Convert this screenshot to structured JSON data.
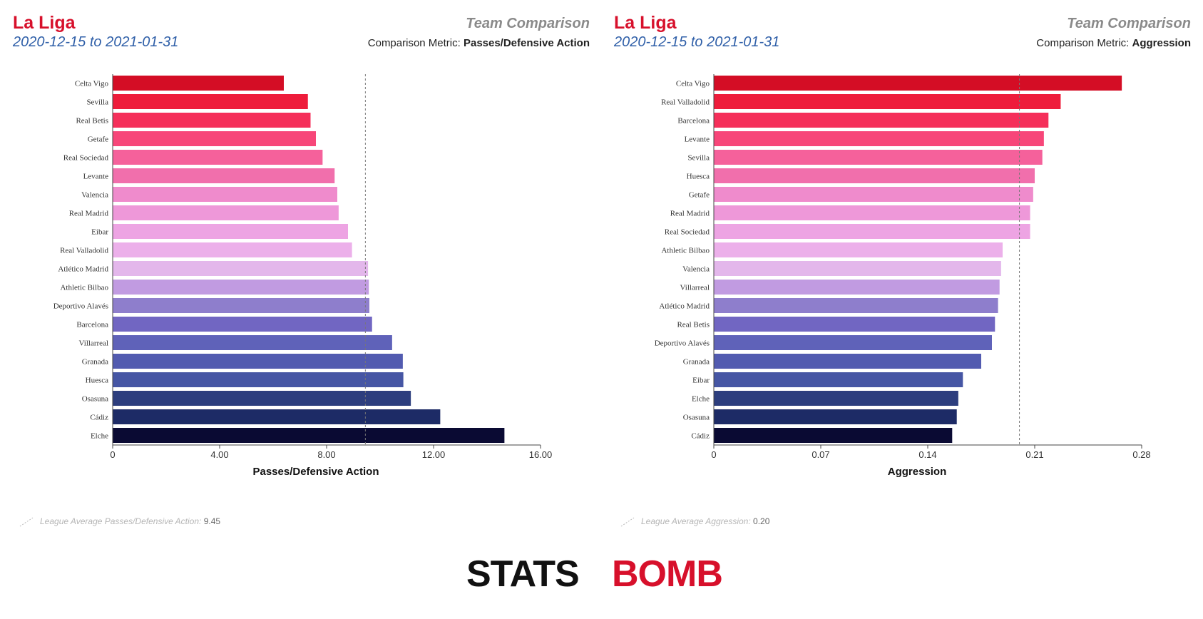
{
  "panels": [
    {
      "title": "La Liga",
      "date_range": "2020-12-15 to 2021-01-31",
      "comparison_heading": "Team Comparison",
      "metric_prefix": "Comparison Metric: ",
      "metric_name": "Passes/Defensive Action",
      "legend_label": "League Average Passes/Defensive Action:",
      "legend_value": "9.45"
    },
    {
      "title": "La Liga",
      "date_range": "2020-12-15 to 2021-01-31",
      "comparison_heading": "Team Comparison",
      "metric_prefix": "Comparison Metric: ",
      "metric_name": "Aggression",
      "legend_label": "League Average Aggression:",
      "legend_value": "0.20"
    }
  ],
  "logo": {
    "part1": "STATS",
    "part2": "BOMB",
    "color1": "#111111",
    "color2": "#d7102b"
  },
  "chart_data": [
    {
      "type": "bar",
      "orientation": "horizontal",
      "categories": [
        "Celta Vigo",
        "Sevilla",
        "Real Betis",
        "Getafe",
        "Real Sociedad",
        "Levante",
        "Valencia",
        "Real Madrid",
        "Eibar",
        "Real Valladolid",
        "Atlético Madrid",
        "Athletic Bilbao",
        "Deportivo Alavés",
        "Barcelona",
        "Villarreal",
        "Granada",
        "Huesca",
        "Osasuna",
        "Cádiz",
        "Elche"
      ],
      "values": [
        6.4,
        7.3,
        7.4,
        7.6,
        7.85,
        8.3,
        8.4,
        8.45,
        8.8,
        8.95,
        9.55,
        9.58,
        9.6,
        9.7,
        10.45,
        10.85,
        10.87,
        11.15,
        12.25,
        14.65
      ],
      "xlabel": "Passes/Defensive Action",
      "xlim": [
        0,
        16
      ],
      "xticks": [
        0,
        4,
        8,
        12,
        16
      ],
      "xtick_labels": [
        "0",
        "4.00",
        "8.00",
        "12.00",
        "16.00"
      ],
      "reference_line": 9.45,
      "colors": [
        "#d40d25",
        "#ee1c3b",
        "#f52f5a",
        "#f74679",
        "#f5619b",
        "#f16fac",
        "#ef8bcc",
        "#ee98d9",
        "#eda4e3",
        "#ecb0ea",
        "#e3b7eb",
        "#c19be1",
        "#8e7ecc",
        "#7166c2",
        "#5f62b9",
        "#525bb0",
        "#4656a4",
        "#2d3e7e",
        "#1d2b66",
        "#0a0a33"
      ],
      "grid": false
    },
    {
      "type": "bar",
      "orientation": "horizontal",
      "categories": [
        "Celta Vigo",
        "Real Valladolid",
        "Barcelona",
        "Levante",
        "Sevilla",
        "Huesca",
        "Getafe",
        "Real Madrid",
        "Real Sociedad",
        "Athletic Bilbao",
        "Valencia",
        "Villarreal",
        "Atlético Madrid",
        "Real Betis",
        "Deportivo Alavés",
        "Granada",
        "Eibar",
        "Elche",
        "Osasuna",
        "Cádiz"
      ],
      "values": [
        0.267,
        0.227,
        0.219,
        0.216,
        0.215,
        0.21,
        0.209,
        0.207,
        0.207,
        0.189,
        0.188,
        0.187,
        0.186,
        0.184,
        0.182,
        0.175,
        0.163,
        0.16,
        0.159,
        0.156
      ],
      "xlabel": "Aggression",
      "xlim": [
        0,
        0.28
      ],
      "xticks": [
        0,
        0.07,
        0.14,
        0.21,
        0.28
      ],
      "xtick_labels": [
        "0",
        "0.07",
        "0.14",
        "0.21",
        "0.28"
      ],
      "reference_line": 0.2,
      "colors": [
        "#d40d25",
        "#ee1c3b",
        "#f52f5a",
        "#f74679",
        "#f5619b",
        "#f16fac",
        "#ef8bcc",
        "#ee98d9",
        "#eda4e3",
        "#ecb0ea",
        "#e3b7eb",
        "#c19be1",
        "#8e7ecc",
        "#7166c2",
        "#5f62b9",
        "#525bb0",
        "#4656a4",
        "#2d3e7e",
        "#1d2b66",
        "#0a0a33"
      ],
      "grid": false
    }
  ]
}
